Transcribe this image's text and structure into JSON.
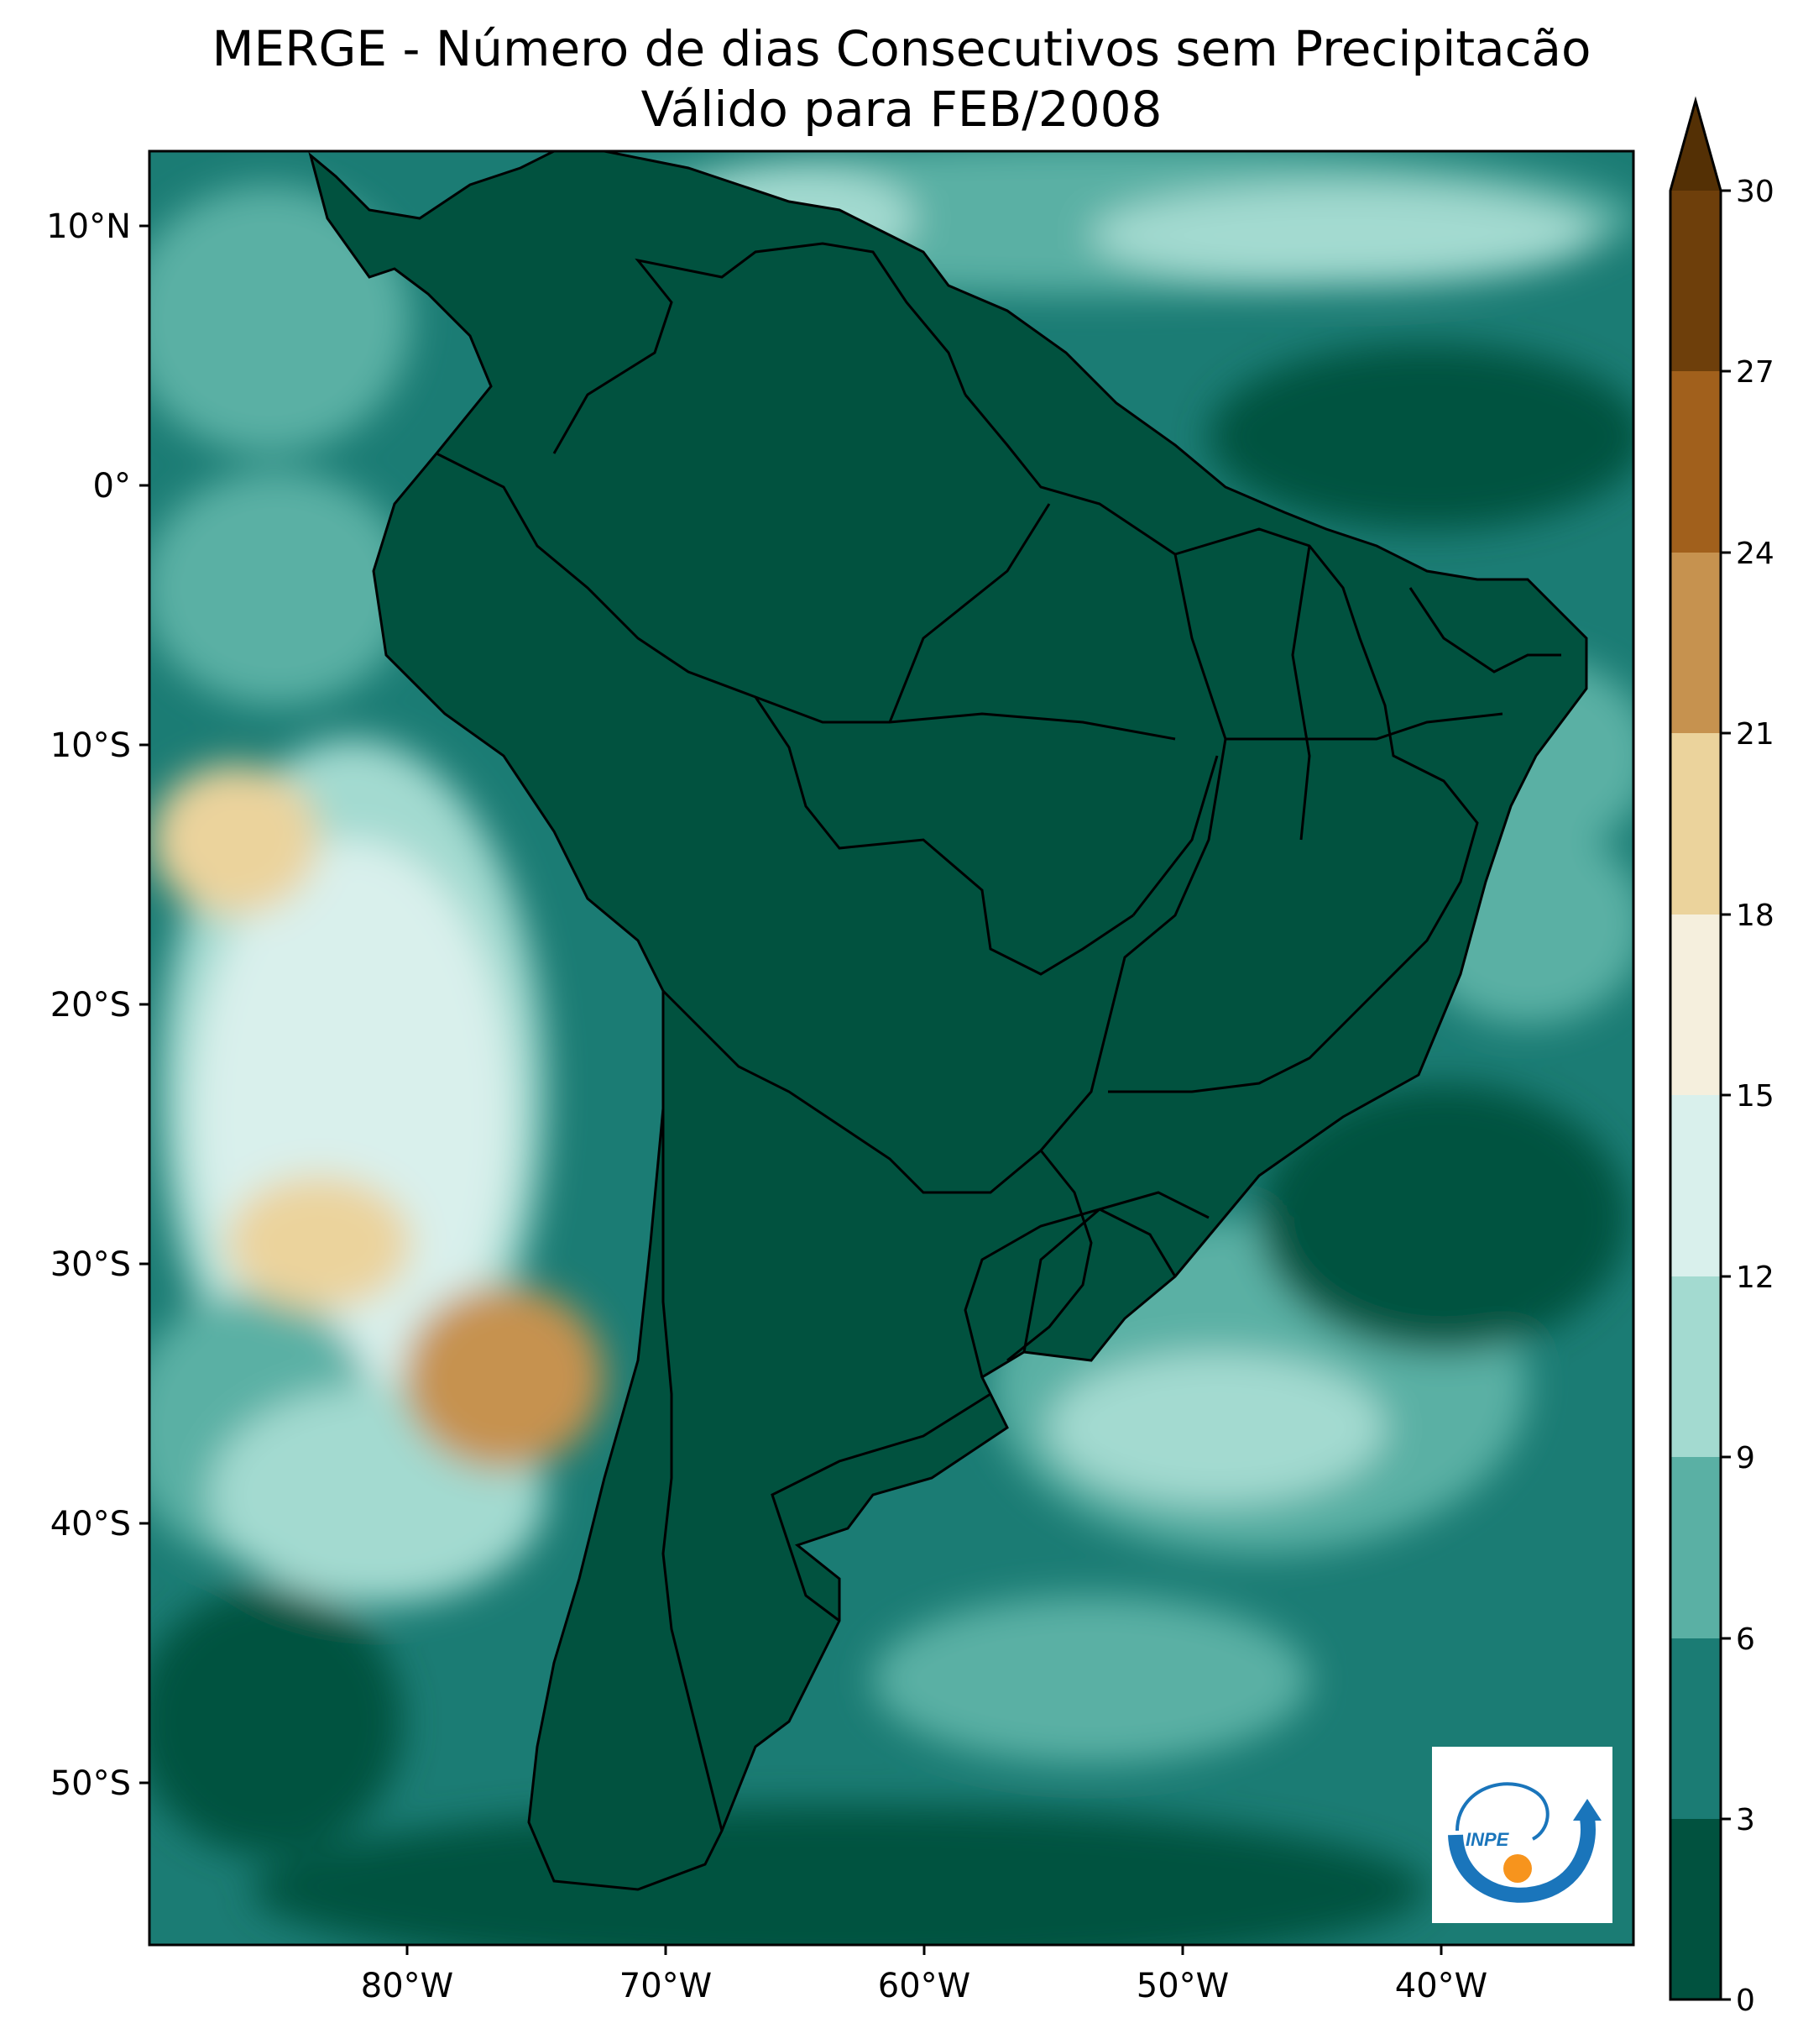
{
  "title": {
    "line1": "MERGE - Número de dias Consecutivos sem Precipitacão",
    "line2": "Válido para FEB/2008"
  },
  "axes": {
    "lat_ticks": [
      "10°N",
      "0°",
      "10°S",
      "20°S",
      "30°S",
      "40°S",
      "50°S"
    ],
    "lon_ticks": [
      "80°W",
      "70°W",
      "60°W",
      "50°W",
      "40°W"
    ]
  },
  "colorbar": {
    "ticks": [
      "0",
      "3",
      "6",
      "9",
      "12",
      "15",
      "18",
      "21",
      "24",
      "27",
      "30"
    ],
    "colors": [
      "#01523f",
      "#1b7c74",
      "#5ab0a4",
      "#a3dad0",
      "#d9f0ec",
      "#f5efdd",
      "#ebd39c",
      "#c6924f",
      "#a1601c",
      "#6e3f0b"
    ],
    "extend_color": "#543005"
  },
  "logo": {
    "text": "INPE",
    "colors": {
      "blue": "#1a75bb",
      "orange": "#f7941d"
    }
  }
}
